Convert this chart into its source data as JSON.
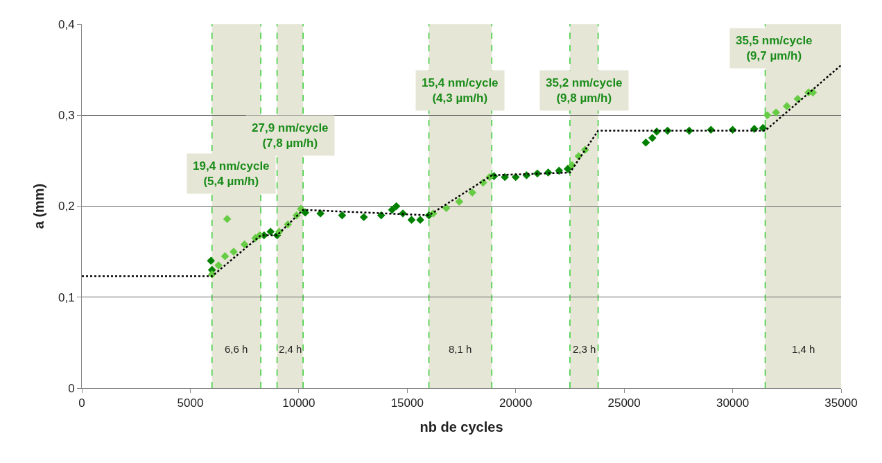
{
  "chart_data": {
    "type": "scatter",
    "xlabel": "nb de cycles",
    "ylabel": "a (mm)",
    "xlim": [
      0,
      35000
    ],
    "xticks": [
      0,
      5000,
      10000,
      15000,
      20000,
      25000,
      30000,
      35000
    ],
    "ylim": [
      0,
      0.4
    ],
    "yticks": [
      0,
      {
        "value": 0.1,
        "label": "0,1"
      },
      {
        "value": 0.2,
        "label": "0,2"
      },
      {
        "value": 0.3,
        "label": "0,3"
      },
      {
        "value": 0.4,
        "label": "0,4"
      }
    ],
    "grid": "y",
    "series": [
      {
        "color": "#008000",
        "marker": "diamond",
        "x": [
          5950,
          6000,
          8400,
          8700,
          9000,
          10300,
          11000,
          12000,
          13000,
          13800,
          14300,
          14500,
          14800,
          15200,
          15600,
          16000,
          19000,
          19500,
          20000,
          20500,
          21000,
          21500,
          22000,
          22400,
          26000,
          26300,
          26500,
          27000,
          28000,
          29000,
          30000,
          31000,
          31400
        ],
        "values": [
          0.14,
          0.13,
          0.168,
          0.172,
          0.168,
          0.193,
          0.192,
          0.19,
          0.188,
          0.19,
          0.196,
          0.2,
          0.192,
          0.185,
          0.185,
          0.19,
          0.233,
          0.232,
          0.232,
          0.234,
          0.236,
          0.237,
          0.239,
          0.241,
          0.27,
          0.275,
          0.282,
          0.283,
          0.283,
          0.284,
          0.284,
          0.285,
          0.286
        ]
      },
      {
        "color": "#66cc44",
        "marker": "diamond",
        "x": [
          6000,
          6300,
          6600,
          6700,
          7000,
          7500,
          8000,
          8200,
          9100,
          9500,
          9900,
          10100,
          16200,
          16800,
          17400,
          18000,
          18500,
          18800,
          22600,
          22900,
          23200,
          31600,
          32000,
          32500,
          33000,
          33500,
          33700
        ],
        "values": [
          0.125,
          0.135,
          0.145,
          0.186,
          0.15,
          0.158,
          0.165,
          0.168,
          0.172,
          0.18,
          0.19,
          0.197,
          0.192,
          0.198,
          0.205,
          0.215,
          0.226,
          0.232,
          0.245,
          0.255,
          0.262,
          0.3,
          0.303,
          0.31,
          0.318,
          0.325,
          0.325
        ]
      },
      {
        "type": "line",
        "color": "#000000",
        "marker": "none",
        "line_style": "dotted",
        "x": [
          0,
          6000,
          8250,
          9000,
          10200,
          16000,
          18900,
          22500,
          23800,
          31500,
          35000
        ],
        "values": [
          0.123,
          0.123,
          0.168,
          0.168,
          0.196,
          0.19,
          0.234,
          0.237,
          0.283,
          0.283,
          0.355
        ]
      }
    ],
    "bands": [
      {
        "axis": "x",
        "from": 6000,
        "to": 8250,
        "label": "6,6 h",
        "color": "#e6e6d6"
      },
      {
        "axis": "x",
        "from": 9000,
        "to": 10200,
        "label": "2,4 h",
        "color": "#e6e6d6"
      },
      {
        "axis": "x",
        "from": 16000,
        "to": 18900,
        "label": "8,1 h",
        "color": "#e6e6d6"
      },
      {
        "axis": "x",
        "from": 22500,
        "to": 23800,
        "label": "2,3 h",
        "color": "#e6e6d6"
      },
      {
        "axis": "x",
        "from": 31500,
        "to": 35000,
        "label": "1,4 h",
        "color": "#e6e6d6"
      }
    ],
    "ref_lines": [
      {
        "axis": "x",
        "value": 6000,
        "color": "#33cc33",
        "line_style": "dashed"
      },
      {
        "axis": "x",
        "value": 8250,
        "color": "#33cc33",
        "line_style": "dashed"
      },
      {
        "axis": "x",
        "value": 9000,
        "color": "#33cc33",
        "line_style": "dashed"
      },
      {
        "axis": "x",
        "value": 10200,
        "color": "#33cc33",
        "line_style": "dashed"
      },
      {
        "axis": "x",
        "value": 16000,
        "color": "#33cc33",
        "line_style": "dashed"
      },
      {
        "axis": "x",
        "value": 18900,
        "color": "#33cc33",
        "line_style": "dashed"
      },
      {
        "axis": "x",
        "value": 22500,
        "color": "#33cc33",
        "line_style": "dashed"
      },
      {
        "axis": "x",
        "value": 23800,
        "color": "#33cc33",
        "line_style": "dashed"
      },
      {
        "axis": "x",
        "value": 31500,
        "color": "#33cc33",
        "line_style": "dashed"
      }
    ],
    "annotations": [
      "19,4 nm/cycle\n(5,4 µm/h)",
      "27,9 nm/cycle\n(7,8 µm/h)",
      "15,4 nm/cycle\n(4,3 µm/h)",
      "35,2 nm/cycle\n(9,8 µm/h)",
      "35,5 nm/cycle\n(9,7 µm/h)"
    ]
  }
}
